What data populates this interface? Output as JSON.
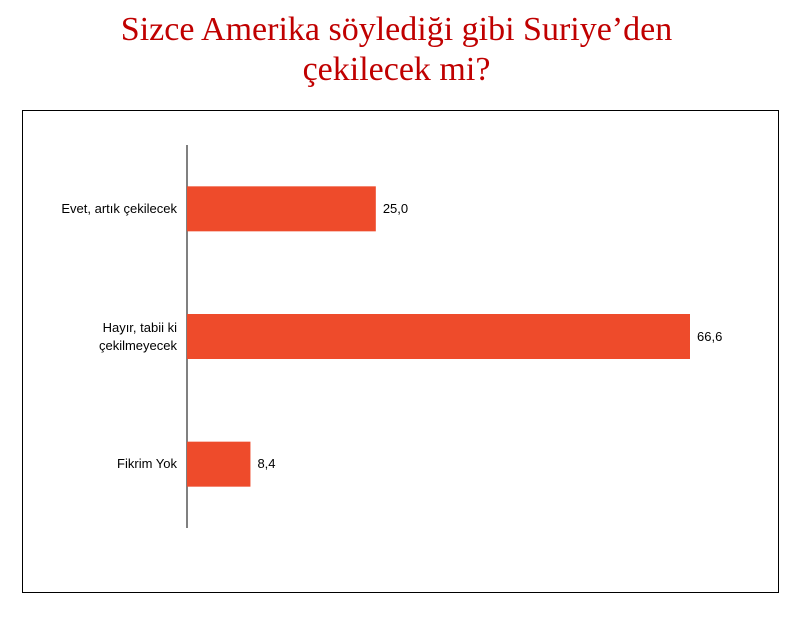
{
  "chart_data": {
    "type": "bar",
    "orientation": "horizontal",
    "title": "Sizce Amerika söylediği gibi Suriye’den çekilecek mi?",
    "categories": [
      "Evet, artık çekilecek",
      "Hayır, tabii ki çekilmeyecek",
      "Fikrim Yok"
    ],
    "values": [
      25.0,
      66.6,
      8.4
    ],
    "value_labels": [
      "25,0",
      "66,6",
      "8,4"
    ],
    "color": "#ee4b2b"
  }
}
